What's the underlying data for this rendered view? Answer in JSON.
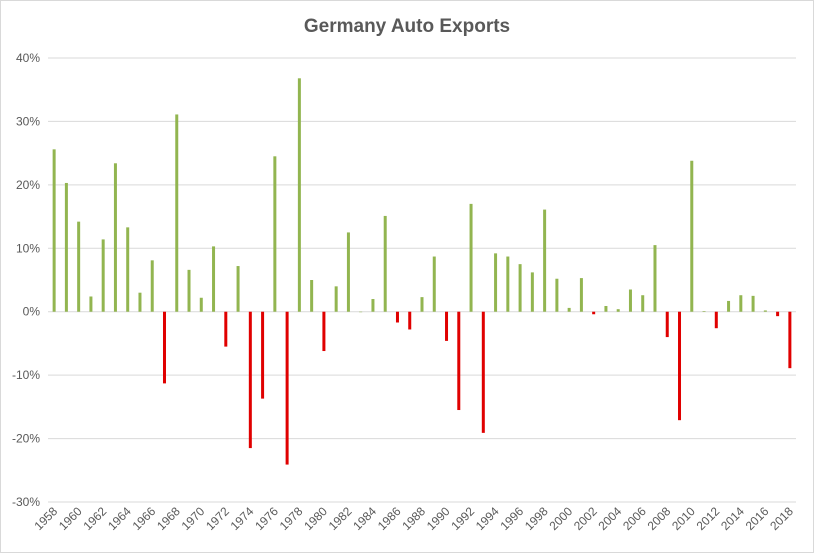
{
  "chart_data": {
    "type": "bar",
    "title": "Germany Auto Exports",
    "xlabel": "",
    "ylabel": "",
    "ylim": [
      -30,
      40
    ],
    "yticks": [
      -30,
      -20,
      -10,
      0,
      10,
      20,
      30,
      40
    ],
    "ytick_labels": [
      "-30%",
      "-20%",
      "-10%",
      "0%",
      "10%",
      "20%",
      "30%",
      "40%"
    ],
    "grid": true,
    "colors": {
      "positive": "#92b550",
      "negative": "#e00000",
      "grid": "#d9d9d9"
    },
    "categories": [
      "1958",
      "1959",
      "1960",
      "1961",
      "1962",
      "1963",
      "1964",
      "1965",
      "1966",
      "1967",
      "1968",
      "1969",
      "1970",
      "1971",
      "1972",
      "1973",
      "1974",
      "1975",
      "1976",
      "1977",
      "1978",
      "1979",
      "1980",
      "1981",
      "1982",
      "1983",
      "1984",
      "1985",
      "1986",
      "1987",
      "1988",
      "1989",
      "1990",
      "1991",
      "1992",
      "1993",
      "1994",
      "1995",
      "1996",
      "1997",
      "1998",
      "1999",
      "2000",
      "2001",
      "2002",
      "2003",
      "2004",
      "2005",
      "2006",
      "2007",
      "2008",
      "2009",
      "2010",
      "2011",
      "2012",
      "2013",
      "2014",
      "2015",
      "2016",
      "2017",
      "2018"
    ],
    "xtick_labels": [
      "1958",
      "1960",
      "1962",
      "1964",
      "1966",
      "1968",
      "1970",
      "1972",
      "1974",
      "1976",
      "1978",
      "1980",
      "1982",
      "1984",
      "1986",
      "1988",
      "1990",
      "1992",
      "1994",
      "1996",
      "1998",
      "2000",
      "2002",
      "2004",
      "2006",
      "2008",
      "2010",
      "2012",
      "2014",
      "2016",
      "2018"
    ],
    "values": [
      25.6,
      20.3,
      14.2,
      2.4,
      11.4,
      23.4,
      13.3,
      3.0,
      8.1,
      -11.3,
      31.1,
      6.6,
      2.2,
      10.3,
      -5.5,
      7.2,
      -21.5,
      -13.7,
      24.5,
      -24.1,
      36.8,
      5.0,
      -6.2,
      4.0,
      12.5,
      0.0,
      2.0,
      15.1,
      -1.7,
      -2.8,
      2.3,
      8.7,
      -4.6,
      -15.5,
      17.0,
      -19.1,
      9.2,
      8.7,
      7.5,
      6.2,
      16.1,
      5.2,
      0.6,
      5.3,
      -0.4,
      0.9,
      0.4,
      3.5,
      2.6,
      10.5,
      -4.0,
      -17.1,
      23.8,
      0.1,
      -2.6,
      1.7,
      2.6,
      2.5,
      0.2,
      -0.7,
      -8.9
    ]
  }
}
